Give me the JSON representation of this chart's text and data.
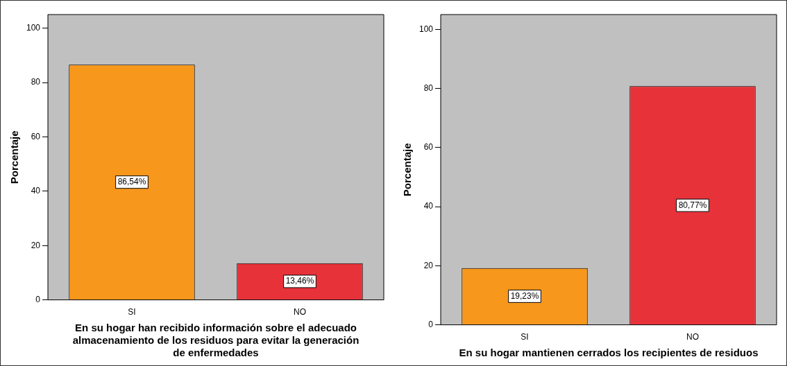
{
  "chart_data": [
    {
      "type": "bar",
      "categories": [
        "SI",
        "NO"
      ],
      "values": [
        86.54,
        13.46
      ],
      "colors": [
        "#f7971c",
        "#e8323a"
      ],
      "value_labels": [
        "86,54%",
        "13,46%"
      ],
      "ylim": [
        0,
        105
      ],
      "yticks": [
        0,
        20,
        40,
        60,
        80,
        100
      ],
      "ylabel": "Porcentaje",
      "xlabel": "En su hogar han recibido información sobre el adecuado almacenamiento de los residuos para evitar la generación de enfermedades",
      "grid": false,
      "legend": false
    },
    {
      "type": "bar",
      "categories": [
        "SI",
        "NO"
      ],
      "values": [
        19.23,
        80.77
      ],
      "colors": [
        "#f7971c",
        "#e8323a"
      ],
      "value_labels": [
        "19,23%",
        "80,77%"
      ],
      "ylim": [
        0,
        105
      ],
      "yticks": [
        0,
        20,
        40,
        60,
        80,
        100
      ],
      "ylabel": "Porcentaje",
      "xlabel": "En su hogar mantienen cerrados los recipientes de residuos",
      "grid": false,
      "legend": false
    }
  ]
}
